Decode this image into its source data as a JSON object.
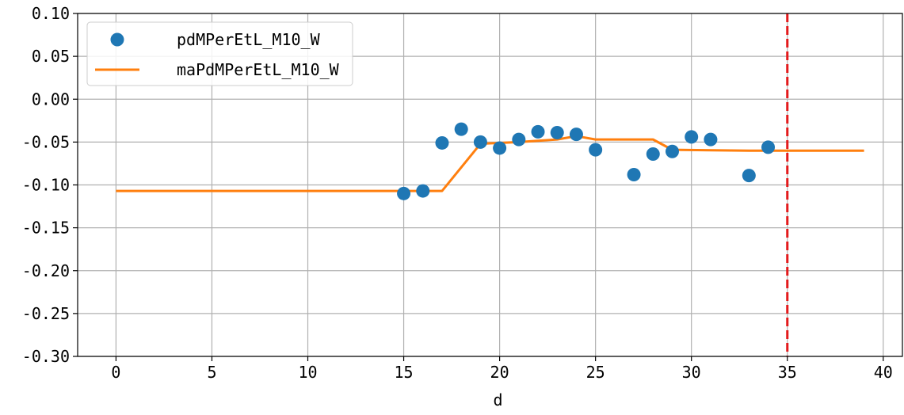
{
  "chart_data": {
    "type": "line",
    "title": "",
    "xlabel": "d",
    "ylabel": "",
    "xlim": [
      -2,
      41
    ],
    "ylim": [
      -0.3,
      0.1
    ],
    "x_ticks": [
      0,
      5,
      10,
      15,
      20,
      25,
      30,
      35,
      40
    ],
    "y_ticks": [
      0.1,
      0.05,
      0.0,
      -0.05,
      -0.1,
      -0.15,
      -0.2,
      -0.25,
      -0.3
    ],
    "x_tick_labels": [
      "0",
      "5",
      "10",
      "15",
      "20",
      "25",
      "30",
      "35",
      "40"
    ],
    "y_tick_labels": [
      "0.10",
      "0.05",
      "0.00",
      "-0.05",
      "-0.10",
      "-0.15",
      "-0.20",
      "-0.25",
      "-0.30"
    ],
    "grid": true,
    "legend_position": "top-left",
    "series": [
      {
        "name": "pdMPerEtL_M10_W",
        "kind": "scatter",
        "color": "#1f77b4",
        "x": [
          15,
          16,
          17,
          18,
          19,
          20,
          21,
          22,
          23,
          24,
          25,
          27,
          28,
          29,
          30,
          31,
          33,
          34
        ],
        "y": [
          -0.11,
          -0.107,
          -0.051,
          -0.035,
          -0.05,
          -0.057,
          -0.047,
          -0.038,
          -0.039,
          -0.041,
          -0.059,
          -0.088,
          -0.064,
          -0.061,
          -0.044,
          -0.047,
          -0.089,
          -0.056
        ]
      },
      {
        "name": "maPdMPerEtL_M10_W",
        "kind": "line",
        "color": "#ff7f0e",
        "x": [
          0,
          17,
          19,
          21,
          23,
          24,
          25,
          28,
          29,
          33,
          35,
          39
        ],
        "y": [
          -0.107,
          -0.107,
          -0.052,
          -0.05,
          -0.047,
          -0.043,
          -0.047,
          -0.047,
          -0.059,
          -0.06,
          -0.06,
          -0.06
        ]
      }
    ],
    "annotations": [
      {
        "type": "vline",
        "x": 35,
        "style": "dashed",
        "color": "#e31a1c"
      }
    ]
  }
}
